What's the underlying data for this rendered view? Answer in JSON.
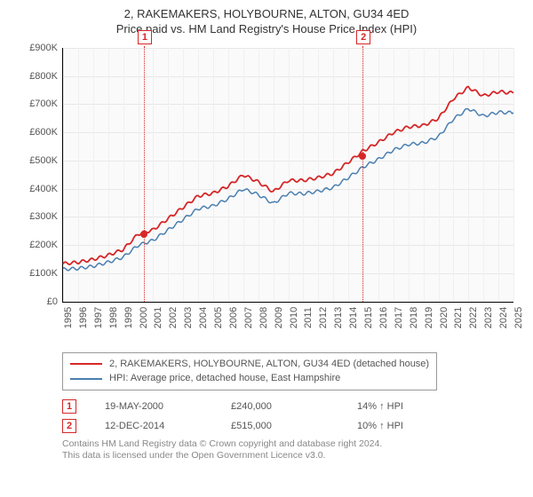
{
  "title": {
    "line1": "2, RAKEMAKERS, HOLYBOURNE, ALTON, GU34 4ED",
    "line2": "Price paid vs. HM Land Registry's House Price Index (HPI)"
  },
  "chart": {
    "type": "line",
    "background_color": "#fafafa",
    "grid_color": "#e8e8e8",
    "axis_color": "#000000",
    "label_color": "#555555",
    "label_fontsize": 11,
    "x": {
      "min": 1995,
      "max": 2025,
      "ticks": [
        1995,
        1996,
        1997,
        1998,
        1999,
        2000,
        2001,
        2002,
        2003,
        2004,
        2005,
        2006,
        2007,
        2008,
        2009,
        2010,
        2011,
        2012,
        2013,
        2014,
        2015,
        2016,
        2017,
        2018,
        2019,
        2020,
        2021,
        2022,
        2023,
        2024,
        2025
      ]
    },
    "y": {
      "min": 0,
      "max": 900000,
      "tick_step": 100000,
      "labels": [
        "£0",
        "£100K",
        "£200K",
        "£300K",
        "£400K",
        "£500K",
        "£600K",
        "£700K",
        "£800K",
        "£900K"
      ]
    },
    "series": [
      {
        "name": "2, RAKEMAKERS, HOLYBOURNE, ALTON, GU34 4ED (detached house)",
        "color": "#d62728",
        "width": 1.8,
        "x": [
          1995,
          1996,
          1997,
          1998,
          1999,
          2000,
          2001,
          2002,
          2003,
          2004,
          2005,
          2006,
          2007,
          2008,
          2009,
          2010,
          2011,
          2012,
          2013,
          2014,
          2015,
          2016,
          2017,
          2018,
          2019,
          2020,
          2021,
          2022,
          2023,
          2024,
          2025
        ],
        "y": [
          135000,
          140000,
          150000,
          165000,
          185000,
          240000,
          255000,
          295000,
          335000,
          375000,
          385000,
          410000,
          450000,
          425000,
          390000,
          430000,
          430000,
          440000,
          455000,
          495000,
          535000,
          565000,
          600000,
          620000,
          625000,
          650000,
          720000,
          760000,
          730000,
          745000,
          740000
        ]
      },
      {
        "name": "HPI: Average price, detached house, East Hampshire",
        "color": "#4a7fb0",
        "width": 1.5,
        "x": [
          1995,
          1996,
          1997,
          1998,
          1999,
          2000,
          2001,
          2002,
          2003,
          2004,
          2005,
          2006,
          2007,
          2008,
          2009,
          2010,
          2011,
          2012,
          2013,
          2014,
          2015,
          2016,
          2017,
          2018,
          2019,
          2020,
          2021,
          2022,
          2023,
          2024,
          2025
        ],
        "y": [
          115000,
          118000,
          126000,
          140000,
          158000,
          200000,
          218000,
          255000,
          292000,
          330000,
          340000,
          365000,
          400000,
          380000,
          348000,
          385000,
          383000,
          392000,
          405000,
          440000,
          478000,
          505000,
          538000,
          558000,
          563000,
          585000,
          648000,
          685000,
          658000,
          672000,
          670000
        ]
      }
    ],
    "markers": [
      {
        "n": "1",
        "x": 2000.38,
        "y": 240000,
        "color": "#d62728",
        "date": "19-MAY-2000",
        "price": "£240,000",
        "delta": "14% ↑ HPI"
      },
      {
        "n": "2",
        "x": 2014.95,
        "y": 515000,
        "color": "#d62728",
        "date": "12-DEC-2014",
        "price": "£515,000",
        "delta": "10% ↑ HPI"
      }
    ]
  },
  "legend": {
    "series0": "2, RAKEMAKERS, HOLYBOURNE, ALTON, GU34 4ED (detached house)",
    "series1": "HPI: Average price, detached house, East Hampshire"
  },
  "marker_rows": {
    "0": {
      "n": "1",
      "date": "19-MAY-2000",
      "price": "£240,000",
      "delta": "14% ↑ HPI"
    },
    "1": {
      "n": "2",
      "date": "12-DEC-2014",
      "price": "£515,000",
      "delta": "10% ↑ HPI"
    }
  },
  "footer": {
    "line1": "Contains HM Land Registry data © Crown copyright and database right 2024.",
    "line2": "This data is licensed under the Open Government Licence v3.0."
  }
}
